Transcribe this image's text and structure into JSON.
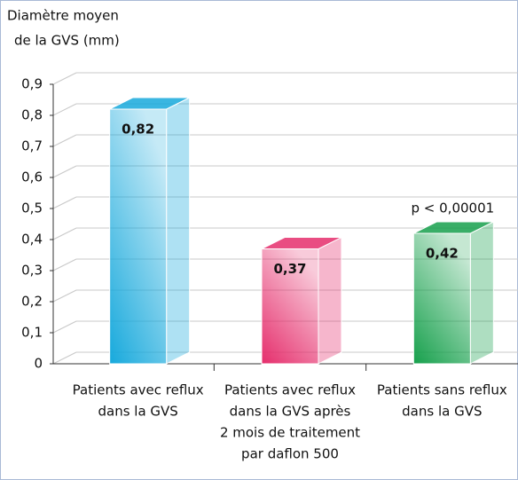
{
  "chart_data": {
    "type": "bar3d",
    "ylabel": [
      "Diamètre moyen",
      "de la GVS (mm)"
    ],
    "categories": [
      [
        "Patients avec reflux",
        "dans la GVS"
      ],
      [
        "Patients avec reflux",
        "dans la GVS après",
        "2 mois de traitement",
        "par daflon 500"
      ],
      [
        "Patients sans reflux",
        "dans la GVS"
      ]
    ],
    "values": [
      0.82,
      0.37,
      0.42
    ],
    "value_labels": [
      "0,82",
      "0,37",
      "0,42"
    ],
    "colors": [
      "#17a9dc",
      "#e52e6c",
      "#16a04c"
    ],
    "annotation": "p < 0,00001",
    "ylim": [
      0,
      0.9
    ],
    "yticks": [
      0,
      {
        "value": 0.1,
        "label": "0,1"
      },
      {
        "value": 0.2,
        "label": "0,2"
      },
      {
        "value": 0.3,
        "label": "0,3"
      },
      {
        "value": 0.4,
        "label": "0,4"
      },
      {
        "value": 0.5,
        "label": "0,5"
      },
      {
        "value": 0.6,
        "label": "0,6"
      },
      {
        "value": 0.7,
        "label": "0,7"
      },
      {
        "value": 0.8,
        "label": "0,8"
      },
      {
        "value": 0.9,
        "label": "0,9"
      }
    ],
    "grid": true
  }
}
